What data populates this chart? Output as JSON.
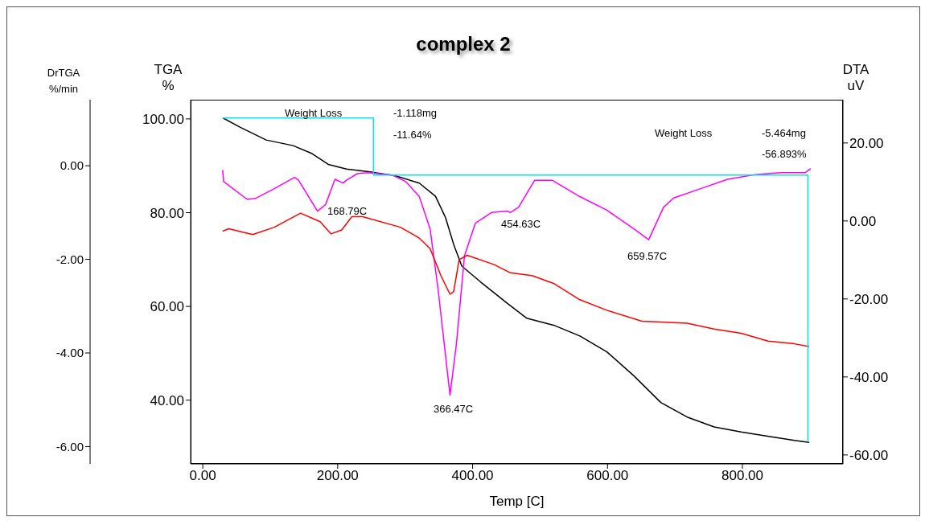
{
  "chart_data": {
    "type": "line",
    "title": "complex 2",
    "xlabel": "Temp [C]",
    "ylabel": "TGA %",
    "y2label": "DTA uV",
    "y3label": "DrTGA %/min",
    "xlim": [
      -18,
      949
    ],
    "xticks": [
      {
        "value": 0,
        "label": "0.00"
      },
      {
        "value": 200,
        "label": "200.00"
      },
      {
        "value": 400,
        "label": "400.00"
      },
      {
        "value": 600,
        "label": "600.00"
      },
      {
        "value": 800,
        "label": "800.00"
      }
    ],
    "ylim": [
      26.4,
      104.1
    ],
    "yticks": [
      {
        "value": 40,
        "label": "40.00"
      },
      {
        "value": 60,
        "label": "60.00"
      },
      {
        "value": 80,
        "label": "80.00"
      },
      {
        "value": 100,
        "label": "100.00"
      }
    ],
    "y2lim": [
      -62.3,
      31.1
    ],
    "y2ticks": [
      {
        "value": -60,
        "label": "-60.00"
      },
      {
        "value": -40,
        "label": "-40.00"
      },
      {
        "value": -20,
        "label": "-20.00"
      },
      {
        "value": 0,
        "label": "0.00"
      },
      {
        "value": 20,
        "label": "20.00"
      }
    ],
    "y3lim": [
      -6.37,
      1.41
    ],
    "y3ticks": [
      {
        "value": -6,
        "label": "-6.00"
      },
      {
        "value": -4,
        "label": "-4.00"
      },
      {
        "value": -2,
        "label": "-2.00"
      },
      {
        "value": 0,
        "label": "0.00"
      }
    ],
    "series": [
      {
        "color": "#000000",
        "x": [
          30,
          54.5,
          94,
          134,
          162,
          186,
          213,
          253,
          285,
          321,
          345,
          360,
          372,
          384,
          412,
          452,
          480,
          520,
          559,
          599,
          639,
          679,
          718,
          758,
          798,
          837,
          877,
          899
        ],
        "values": [
          100.2,
          98.3,
          95.5,
          94.3,
          92.6,
          90.3,
          89.3,
          88.6,
          87.9,
          86.3,
          83.5,
          78.9,
          73.2,
          68.6,
          65.2,
          60.6,
          57.5,
          56.0,
          53.7,
          50.3,
          45.2,
          39.5,
          36.4,
          34.3,
          33.2,
          32.3,
          31.4,
          31.0
        ]
      },
      {
        "color": "#ff00ff",
        "axis": "y3",
        "x": [
          29.4,
          31,
          66,
          78,
          106,
          136,
          142,
          170,
          182,
          196,
          208,
          213,
          229,
          245,
          281,
          301,
          321,
          337,
          349,
          366.5,
          376,
          388,
          404,
          428,
          452,
          456,
          468,
          492,
          518,
          559,
          599,
          639,
          661,
          683,
          698,
          738,
          778,
          818,
          857,
          893,
          901
        ],
        "values": [
          -0.09,
          -0.34,
          -0.72,
          -0.7,
          -0.49,
          -0.25,
          -0.31,
          -0.97,
          -0.83,
          -0.29,
          -0.37,
          -0.31,
          -0.17,
          -0.15,
          -0.2,
          -0.34,
          -0.66,
          -1.35,
          -2.66,
          -4.9,
          -3.81,
          -1.92,
          -1.23,
          -1.0,
          -0.97,
          -1.0,
          -0.89,
          -0.31,
          -0.31,
          -0.66,
          -0.95,
          -1.35,
          -1.58,
          -0.89,
          -0.69,
          -0.49,
          -0.29,
          -0.19,
          -0.15,
          -0.15,
          -0.06
        ]
      },
      {
        "color": "#ff0000",
        "axis": "y2",
        "x": [
          29.4,
          38.6,
          74,
          106,
          145,
          174,
          190,
          206,
          221,
          237,
          293,
          321,
          337,
          353,
          366.5,
          372,
          380,
          392,
          432,
          456,
          488,
          520,
          559,
          599,
          651,
          718,
          758,
          798,
          838,
          877,
          899
        ],
        "values": [
          -2.6,
          -2.0,
          -3.5,
          -1.6,
          2.0,
          -0.2,
          -3.3,
          -2.3,
          1.1,
          1.1,
          -1.6,
          -4.4,
          -7.1,
          -14.0,
          -18.8,
          -18.1,
          -9.9,
          -8.8,
          -11.2,
          -13.3,
          -14.0,
          -16.0,
          -20.2,
          -22.9,
          -25.7,
          -26.2,
          -27.7,
          -28.8,
          -30.8,
          -31.5,
          -32.2
        ]
      },
      {
        "color": "#00e5ee",
        "x": [
          29.4,
          253,
          253,
          897,
          897
        ],
        "values": [
          100.2,
          100.2,
          88.0,
          88.0,
          31.1
        ]
      }
    ],
    "annotations": [
      "Weight Loss",
      "-1.118mg",
      "-11.64%",
      "Weight Loss",
      "-5.464mg",
      "-56.893%",
      "168.79C",
      "366.47C",
      "454.63C",
      "659.57C"
    ]
  }
}
